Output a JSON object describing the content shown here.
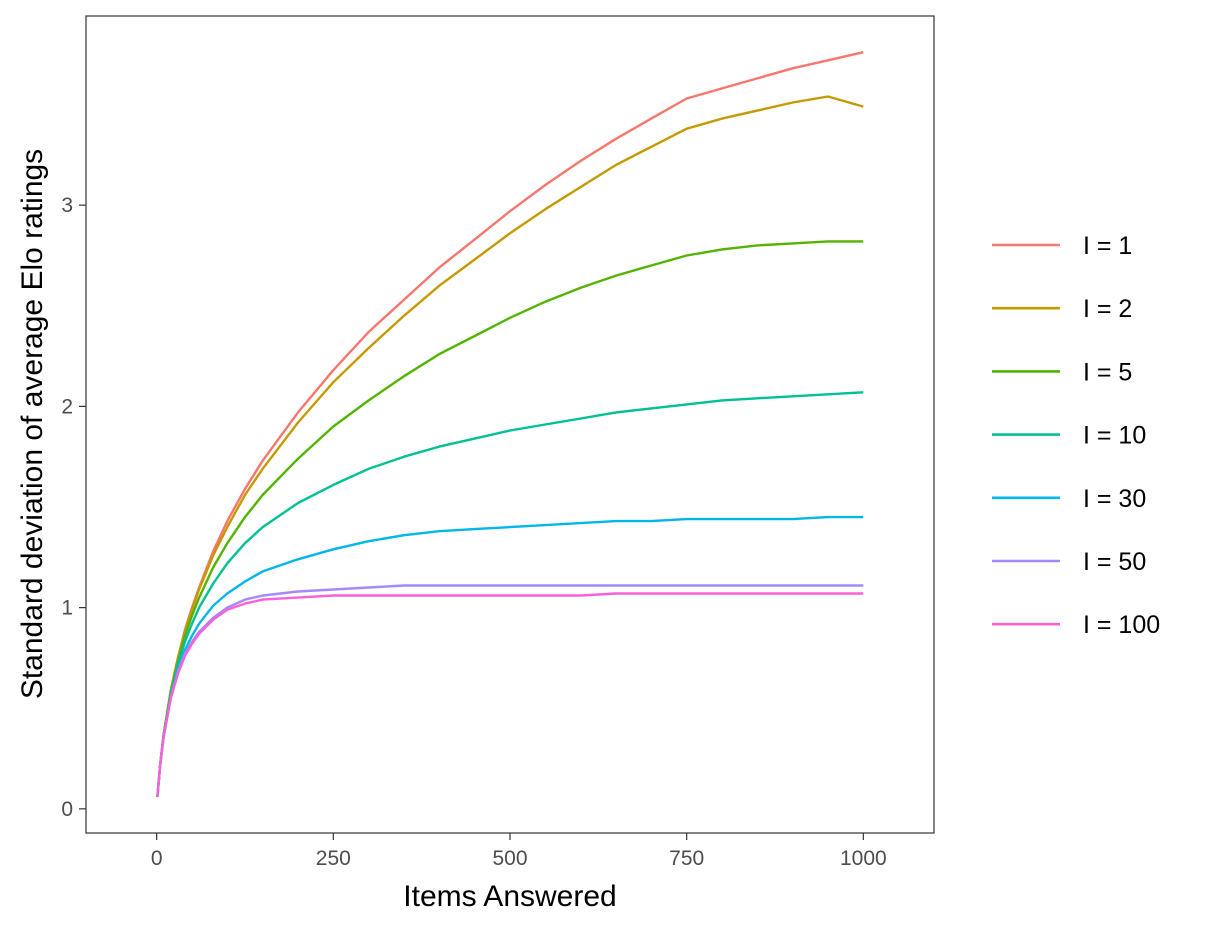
{
  "chart_data": {
    "type": "line",
    "title": "",
    "xlabel": "Items Answered",
    "ylabel": "Standard deviation of average Elo ratings",
    "xlim": [
      -100,
      1100
    ],
    "ylim": [
      -0.12,
      3.94
    ],
    "x_ticks": [
      0,
      250,
      500,
      750,
      1000
    ],
    "x_tick_labels": [
      "0",
      "250",
      "500",
      "750",
      "1000"
    ],
    "y_ticks": [
      0,
      1,
      2,
      3
    ],
    "y_tick_labels": [
      "0",
      "1",
      "2",
      "3"
    ],
    "grid": false,
    "legend_position": "right",
    "x": [
      1,
      5,
      10,
      20,
      30,
      40,
      50,
      60,
      80,
      100,
      125,
      150,
      200,
      250,
      300,
      350,
      400,
      450,
      500,
      550,
      600,
      650,
      700,
      750,
      800,
      850,
      900,
      950,
      1000
    ],
    "series": [
      {
        "name": "I = 1",
        "color": "#F8766D",
        "values": [
          0.06,
          0.22,
          0.37,
          0.59,
          0.75,
          0.89,
          1.0,
          1.1,
          1.28,
          1.43,
          1.59,
          1.73,
          1.97,
          2.18,
          2.37,
          2.53,
          2.69,
          2.83,
          2.97,
          3.1,
          3.22,
          3.33,
          3.43,
          3.53,
          3.58,
          3.63,
          3.68,
          3.72,
          3.76
        ]
      },
      {
        "name": "I = 2",
        "color": "#C49A00",
        "values": [
          0.06,
          0.22,
          0.37,
          0.59,
          0.75,
          0.88,
          0.99,
          1.09,
          1.26,
          1.4,
          1.56,
          1.69,
          1.92,
          2.12,
          2.29,
          2.45,
          2.6,
          2.73,
          2.86,
          2.98,
          3.09,
          3.2,
          3.29,
          3.38,
          3.43,
          3.47,
          3.51,
          3.54,
          3.49
        ]
      },
      {
        "name": "I = 5",
        "color": "#53B400",
        "values": [
          0.06,
          0.22,
          0.37,
          0.58,
          0.73,
          0.86,
          0.96,
          1.05,
          1.2,
          1.32,
          1.45,
          1.56,
          1.74,
          1.9,
          2.03,
          2.15,
          2.26,
          2.35,
          2.44,
          2.52,
          2.59,
          2.65,
          2.7,
          2.75,
          2.78,
          2.8,
          2.81,
          2.82,
          2.82
        ]
      },
      {
        "name": "I = 10",
        "color": "#00C094",
        "values": [
          0.06,
          0.22,
          0.37,
          0.57,
          0.72,
          0.83,
          0.92,
          1.0,
          1.12,
          1.22,
          1.32,
          1.4,
          1.52,
          1.61,
          1.69,
          1.75,
          1.8,
          1.84,
          1.88,
          1.91,
          1.94,
          1.97,
          1.99,
          2.01,
          2.03,
          2.04,
          2.05,
          2.06,
          2.07
        ]
      },
      {
        "name": "I = 30",
        "color": "#00B6EB",
        "values": [
          0.06,
          0.22,
          0.36,
          0.56,
          0.69,
          0.79,
          0.86,
          0.92,
          1.01,
          1.07,
          1.13,
          1.18,
          1.24,
          1.29,
          1.33,
          1.36,
          1.38,
          1.39,
          1.4,
          1.41,
          1.42,
          1.43,
          1.43,
          1.44,
          1.44,
          1.44,
          1.44,
          1.45,
          1.45
        ]
      },
      {
        "name": "I = 50",
        "color": "#A58AFF",
        "values": [
          0.06,
          0.22,
          0.36,
          0.55,
          0.68,
          0.77,
          0.83,
          0.88,
          0.95,
          1.0,
          1.04,
          1.06,
          1.08,
          1.09,
          1.1,
          1.11,
          1.11,
          1.11,
          1.11,
          1.11,
          1.11,
          1.11,
          1.11,
          1.11,
          1.11,
          1.11,
          1.11,
          1.11,
          1.11
        ]
      },
      {
        "name": "I = 100",
        "color": "#FB61D7",
        "values": [
          0.06,
          0.22,
          0.36,
          0.55,
          0.67,
          0.76,
          0.82,
          0.87,
          0.94,
          0.99,
          1.02,
          1.04,
          1.05,
          1.06,
          1.06,
          1.06,
          1.06,
          1.06,
          1.06,
          1.06,
          1.06,
          1.07,
          1.07,
          1.07,
          1.07,
          1.07,
          1.07,
          1.07,
          1.07
        ]
      }
    ]
  }
}
